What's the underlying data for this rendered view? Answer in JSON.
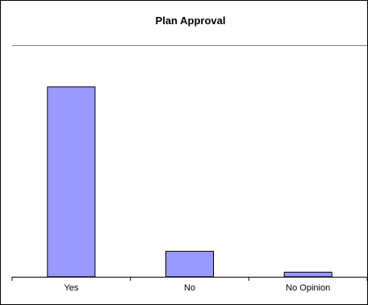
{
  "chart_data": {
    "type": "bar",
    "title": "Plan Approval",
    "categories": [
      "Yes",
      "No",
      "No Opinion"
    ],
    "values": [
      82,
      11,
      2
    ],
    "ylim": [
      0,
      100
    ],
    "xlabel": "",
    "ylabel": "",
    "grid": false,
    "legend": "none",
    "colors": {
      "bar_fill": "#9999ff",
      "bar_stroke": "#000000",
      "plot_border": "#808080",
      "axis": "#000000",
      "frame": "#000000",
      "background": "#ffffff"
    }
  }
}
